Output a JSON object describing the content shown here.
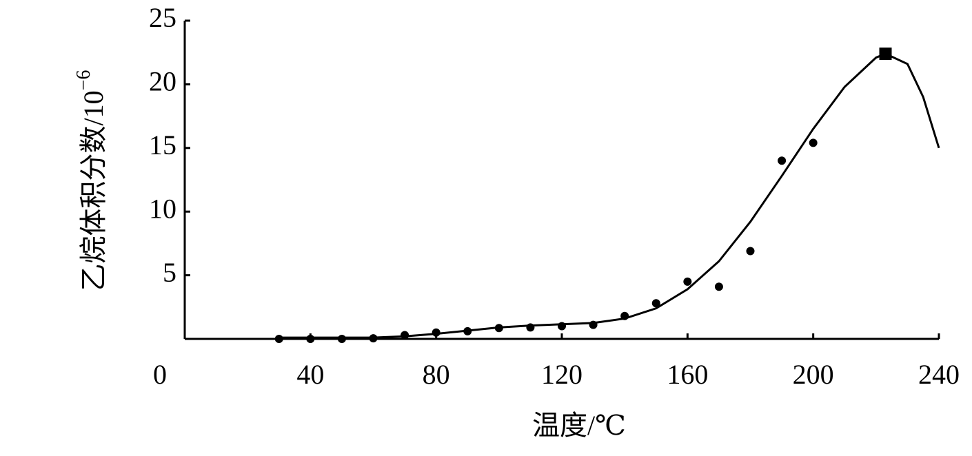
{
  "chart_data": {
    "type": "scatter",
    "x_label": "温度/℃",
    "y_label": "乙烷体积分数/10",
    "y_label_exponent": "−6",
    "xlim": [
      0,
      240
    ],
    "xticks": [
      0,
      40,
      80,
      120,
      160,
      200,
      240
    ],
    "ylim": [
      0,
      25
    ],
    "yticks": [
      5,
      10,
      15,
      20,
      25
    ],
    "color": "#000000",
    "points": {
      "x": [
        30,
        40,
        50,
        60,
        70,
        80,
        90,
        100,
        110,
        120,
        130,
        140,
        150,
        160,
        170,
        180,
        190,
        200
      ],
      "values": [
        0,
        0,
        0,
        0.05,
        0.3,
        0.5,
        0.6,
        0.85,
        0.9,
        1.0,
        1.1,
        1.8,
        2.8,
        4.5,
        4.1,
        6.9,
        14.0,
        15.4
      ]
    },
    "curve": {
      "x": [
        30,
        60,
        70,
        80,
        90,
        100,
        110,
        120,
        130,
        140,
        150,
        160,
        170,
        180,
        190,
        200,
        210,
        220,
        223,
        230,
        235,
        240
      ],
      "values": [
        0.1,
        0.1,
        0.2,
        0.4,
        0.65,
        0.9,
        1.05,
        1.15,
        1.25,
        1.6,
        2.4,
        3.9,
        6.1,
        9.2,
        12.8,
        16.5,
        19.8,
        22.1,
        22.4,
        21.6,
        19.0,
        15.0
      ]
    },
    "peak": {
      "x": [
        223
      ],
      "values": [
        22.4
      ]
    }
  }
}
